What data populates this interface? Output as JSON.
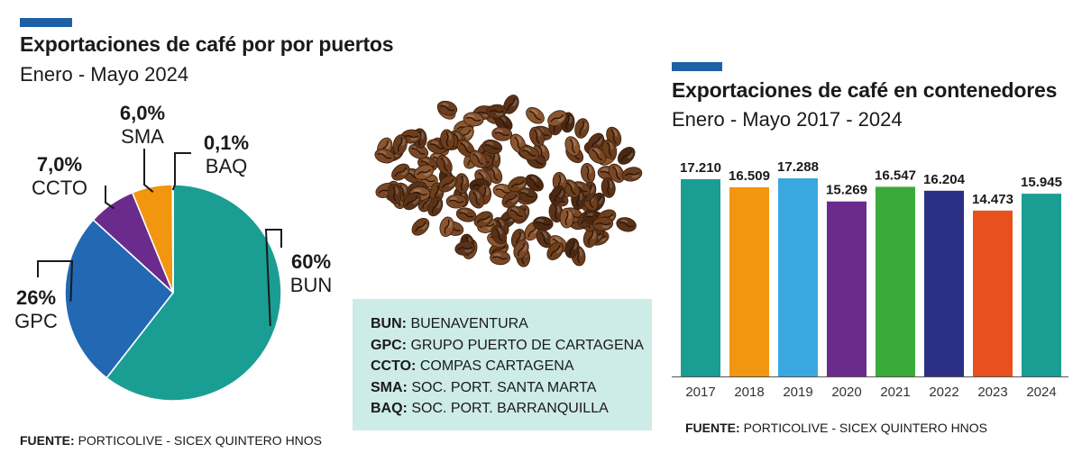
{
  "left": {
    "title": "Exportaciones de café por por puertos",
    "subtitle": "Enero - Mayo 2024",
    "source_label": "FUENTE:",
    "source_text": "PORTICOLIVE - SICEX QUINTERO HNOS"
  },
  "right": {
    "title": "Exportaciones de café en contenedores",
    "subtitle": "Enero - Mayo 2017 - 2024",
    "source_label": "FUENTE:",
    "source_text": "PORTICOLIVE - SICEX QUINTERO HNOS"
  },
  "legend": [
    {
      "abbr": "BUN:",
      "name": "BUENAVENTURA"
    },
    {
      "abbr": "GPC:",
      "name": "GRUPO PUERTO DE CARTAGENA"
    },
    {
      "abbr": "CCTO:",
      "name": "COMPAS CARTAGENA"
    },
    {
      "abbr": "SMA:",
      "name": "SOC. PORT. SANTA MARTA"
    },
    {
      "abbr": "BAQ:",
      "name": "SOC. PORT. BARRANQUILLA"
    }
  ],
  "chart_data": [
    {
      "type": "pie",
      "title": "Exportaciones de café por por puertos",
      "subtitle": "Enero - Mayo 2024",
      "slices": [
        {
          "label": "BUN",
          "value": 60,
          "display": "60%",
          "color": "#1a9e93"
        },
        {
          "label": "GPC",
          "value": 26,
          "display": "26%",
          "color": "#2268b3"
        },
        {
          "label": "CCTO",
          "value": 7.0,
          "display": "7,0%",
          "color": "#6a2b8c"
        },
        {
          "label": "SMA",
          "value": 6.0,
          "display": "6,0%",
          "color": "#f2950f"
        },
        {
          "label": "BAQ",
          "value": 0.1,
          "display": "0,1%",
          "color": "#f2950f"
        }
      ]
    },
    {
      "type": "bar",
      "title": "Exportaciones de café en contenedores",
      "subtitle": "Enero - Mayo 2017 - 2024",
      "categories": [
        "2017",
        "2018",
        "2019",
        "2020",
        "2021",
        "2022",
        "2023",
        "2024"
      ],
      "values": [
        17210,
        16509,
        17288,
        15269,
        16547,
        16204,
        14473,
        15945
      ],
      "value_labels": [
        "17.210",
        "16.509",
        "17.288",
        "15.269",
        "16.547",
        "16.204",
        "14.473",
        "15.945"
      ],
      "colors": [
        "#1a9e93",
        "#f2950f",
        "#3aa8e0",
        "#6a2b8c",
        "#3aaa3a",
        "#2b2f86",
        "#e8501e",
        "#1a9e93"
      ],
      "legend": "none",
      "grid": false
    }
  ]
}
